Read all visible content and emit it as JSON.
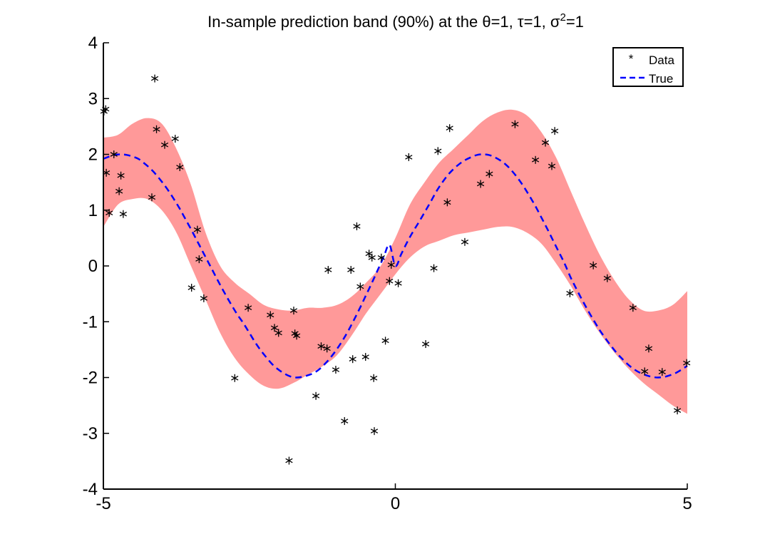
{
  "chart_data": {
    "type": "line",
    "title": {
      "prefix": "In-sample prediction band (90%) at the ",
      "theta": "θ",
      "theta_val": "=1, ",
      "tau": "τ",
      "tau_val": "=1, ",
      "sigma": "σ",
      "sigma_exp": "2",
      "sigma_val": "=1"
    },
    "xlabel": "",
    "ylabel": "",
    "xlim": [
      -5,
      5
    ],
    "ylim": [
      -4,
      4
    ],
    "xticks": [
      -5,
      0,
      5
    ],
    "xtick_labels": [
      "-5",
      "0",
      "5"
    ],
    "yticks": [
      -4,
      -3,
      -2,
      -1,
      0,
      1,
      2,
      3,
      4
    ],
    "ytick_labels": [
      "-4",
      "-3",
      "-2",
      "-1",
      "0",
      "1",
      "2",
      "3",
      "4"
    ],
    "grid": false,
    "legend": {
      "placement": "top-right",
      "entries": [
        {
          "label": "Data",
          "marker": "*",
          "color": "#000000"
        },
        {
          "label": "True",
          "style": "dashed",
          "color": "#0000ff"
        }
      ]
    },
    "colors": {
      "band": "#ff9999",
      "true_line": "#0000ff",
      "data": "#000000"
    },
    "series": [
      {
        "name": "Data",
        "kind": "scatter",
        "points": [
          [
            -4.99,
            2.77
          ],
          [
            -4.96,
            2.81
          ],
          [
            -4.95,
            1.67
          ],
          [
            -4.9,
            0.95
          ],
          [
            -4.82,
            2.0
          ],
          [
            -4.73,
            1.34
          ],
          [
            -4.7,
            1.62
          ],
          [
            -4.66,
            0.93
          ],
          [
            -4.17,
            1.23
          ],
          [
            -4.12,
            3.36
          ],
          [
            -4.09,
            2.45
          ],
          [
            -3.95,
            2.17
          ],
          [
            -3.77,
            2.28
          ],
          [
            -3.69,
            1.77
          ],
          [
            -3.49,
            -0.39
          ],
          [
            -3.39,
            0.65
          ],
          [
            -3.36,
            0.12
          ],
          [
            -3.28,
            -0.58
          ],
          [
            -2.75,
            -2.01
          ],
          [
            -2.52,
            -0.75
          ],
          [
            -2.14,
            -0.88
          ],
          [
            -2.07,
            -1.11
          ],
          [
            -2.0,
            -1.2
          ],
          [
            -1.82,
            -3.49
          ],
          [
            -1.74,
            -0.8
          ],
          [
            -1.72,
            -1.21
          ],
          [
            -1.69,
            -1.25
          ],
          [
            -1.36,
            -2.33
          ],
          [
            -1.27,
            -1.44
          ],
          [
            -1.17,
            -1.48
          ],
          [
            -1.15,
            -0.07
          ],
          [
            -1.02,
            -1.86
          ],
          [
            -0.87,
            -2.78
          ],
          [
            -0.76,
            -0.07
          ],
          [
            -0.73,
            -1.67
          ],
          [
            -0.66,
            0.71
          ],
          [
            -0.6,
            -0.37
          ],
          [
            -0.51,
            -1.63
          ],
          [
            -0.45,
            0.22
          ],
          [
            -0.4,
            0.15
          ],
          [
            -0.37,
            -2.01
          ],
          [
            -0.36,
            -2.96
          ],
          [
            -0.24,
            0.15
          ],
          [
            -0.17,
            -1.34
          ],
          [
            -0.1,
            -0.27
          ],
          [
            -0.07,
            0.02
          ],
          [
            0.05,
            -0.31
          ],
          [
            0.23,
            1.95
          ],
          [
            0.52,
            -1.4
          ],
          [
            0.66,
            -0.04
          ],
          [
            0.73,
            2.06
          ],
          [
            0.89,
            1.14
          ],
          [
            0.93,
            2.47
          ],
          [
            1.19,
            0.43
          ],
          [
            1.46,
            1.47
          ],
          [
            1.61,
            1.65
          ],
          [
            2.05,
            2.54
          ],
          [
            2.4,
            1.9
          ],
          [
            2.57,
            2.21
          ],
          [
            2.68,
            1.79
          ],
          [
            2.73,
            2.42
          ],
          [
            2.99,
            -0.49
          ],
          [
            3.39,
            0.01
          ],
          [
            3.63,
            -0.22
          ],
          [
            4.07,
            -0.75
          ],
          [
            4.27,
            -1.89
          ],
          [
            4.34,
            -1.48
          ],
          [
            4.57,
            -1.9
          ],
          [
            4.83,
            -2.59
          ],
          [
            4.99,
            -1.74
          ]
        ]
      },
      {
        "name": "True",
        "kind": "line",
        "x": [
          -5.0,
          -4.9,
          -4.8,
          -4.7,
          -4.6,
          -4.5,
          -4.4,
          -4.3,
          -4.2,
          -4.1,
          -4.0,
          -3.9,
          -3.8,
          -3.7,
          -3.6,
          -3.5,
          -3.4,
          -3.3,
          -3.2,
          -3.1,
          -3.0,
          -2.9,
          -2.8,
          -2.7,
          -2.6,
          -2.5,
          -2.4,
          -2.3,
          -2.2,
          -2.1,
          -2.0,
          -1.9,
          -1.8,
          -1.7,
          -1.6,
          -1.5,
          -1.4,
          -1.3,
          -1.2,
          -1.1,
          -1.0,
          -0.9,
          -0.8,
          -0.7,
          -0.6,
          -0.5,
          -0.4,
          -0.3,
          -0.2,
          -0.1,
          0.0,
          0.1,
          0.2,
          0.3,
          0.4,
          0.5,
          0.6,
          0.7,
          0.8,
          0.9,
          1.0,
          1.1,
          1.2,
          1.3,
          1.4,
          1.5,
          1.6,
          1.7,
          1.8,
          1.9,
          2.0,
          2.1,
          2.2,
          2.3,
          2.4,
          2.5,
          2.6,
          2.7,
          2.8,
          2.9,
          3.0,
          3.1,
          3.2,
          3.3,
          3.4,
          3.5,
          3.6,
          3.7,
          3.8,
          3.9,
          4.0,
          4.1,
          4.2,
          4.3,
          4.4,
          4.5,
          4.6,
          4.7,
          4.8,
          4.9,
          5.0
        ],
        "y": [
          1.92,
          1.96,
          1.99,
          2.0,
          1.99,
          1.96,
          1.92,
          1.84,
          1.75,
          1.64,
          1.51,
          1.37,
          1.21,
          1.04,
          0.85,
          0.66,
          0.46,
          0.26,
          0.06,
          -0.14,
          -0.34,
          -0.53,
          -0.71,
          -0.88,
          -1.03,
          -1.2,
          -1.37,
          -1.52,
          -1.65,
          -1.77,
          -1.86,
          -1.93,
          -1.98,
          -2.0,
          -1.99,
          -1.96,
          -1.92,
          -1.85,
          -1.75,
          -1.63,
          -1.49,
          -1.33,
          -1.15,
          -0.95,
          -0.74,
          -0.52,
          -0.3,
          -0.07,
          0.16,
          0.38,
          0.0,
          0.21,
          0.42,
          0.61,
          0.78,
          0.96,
          1.14,
          1.33,
          1.49,
          1.63,
          1.74,
          1.83,
          1.9,
          1.95,
          1.99,
          2.0,
          1.99,
          1.95,
          1.89,
          1.81,
          1.7,
          1.57,
          1.42,
          1.25,
          1.07,
          0.87,
          0.67,
          0.46,
          0.25,
          0.04,
          -0.2,
          -0.41,
          -0.61,
          -0.8,
          -0.98,
          -1.15,
          -1.3,
          -1.44,
          -1.57,
          -1.68,
          -1.78,
          -1.86,
          -1.92,
          -1.96,
          -1.99,
          -2.0,
          -1.99,
          -1.96,
          -1.92,
          -1.86,
          -1.79
        ]
      },
      {
        "name": "90% prediction band",
        "kind": "band",
        "x": [
          -5.0,
          -4.75,
          -4.5,
          -4.25,
          -4.0,
          -3.75,
          -3.5,
          -3.25,
          -3.0,
          -2.75,
          -2.5,
          -2.25,
          -2.0,
          -1.75,
          -1.5,
          -1.25,
          -1.0,
          -0.75,
          -0.5,
          -0.25,
          0.0,
          0.25,
          0.5,
          0.75,
          1.0,
          1.25,
          1.5,
          1.75,
          2.0,
          2.25,
          2.5,
          2.75,
          3.0,
          3.25,
          3.5,
          3.75,
          4.0,
          4.25,
          4.5,
          4.75,
          5.0
        ],
        "lower": [
          0.7,
          1.1,
          1.2,
          1.2,
          1.0,
          0.6,
          0.0,
          -0.6,
          -1.2,
          -1.65,
          -1.95,
          -2.15,
          -2.2,
          -2.1,
          -1.95,
          -1.8,
          -1.6,
          -1.25,
          -0.85,
          -0.5,
          -0.15,
          0.15,
          0.35,
          0.45,
          0.55,
          0.6,
          0.65,
          0.7,
          0.7,
          0.6,
          0.4,
          0.05,
          -0.35,
          -0.8,
          -1.2,
          -1.55,
          -1.85,
          -2.1,
          -2.3,
          -2.5,
          -2.65
        ],
        "upper": [
          2.3,
          2.35,
          2.55,
          2.65,
          2.55,
          2.1,
          1.45,
          0.6,
          0.0,
          -0.3,
          -0.5,
          -0.7,
          -0.78,
          -0.8,
          -0.75,
          -0.75,
          -0.7,
          -0.55,
          -0.3,
          0.0,
          0.5,
          1.1,
          1.5,
          1.85,
          2.1,
          2.35,
          2.6,
          2.75,
          2.8,
          2.7,
          2.4,
          1.95,
          1.35,
          0.75,
          0.2,
          -0.25,
          -0.6,
          -0.8,
          -0.8,
          -0.7,
          -0.45
        ]
      }
    ]
  }
}
